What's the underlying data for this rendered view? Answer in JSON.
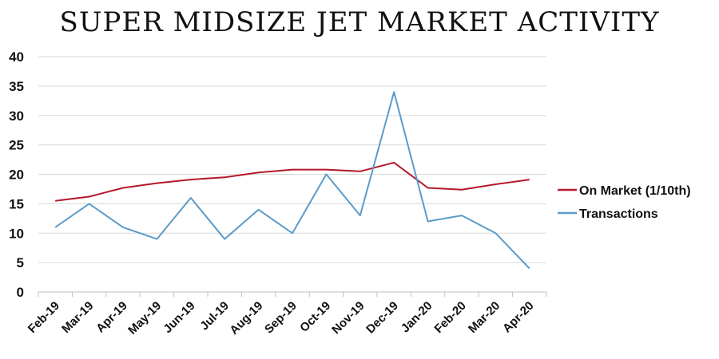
{
  "chart_data": {
    "type": "line",
    "title": "SUPER MIDSIZE JET MARKET ACTIVITY",
    "categories": [
      "Feb-19",
      "Mar-19",
      "Apr-19",
      "May-19",
      "Jun-19",
      "Jul-19",
      "Aug-19",
      "Sep-19",
      "Oct-19",
      "Nov-19",
      "Dec-19",
      "Jan-20",
      "Feb-20",
      "Mar-20",
      "Apr-20"
    ],
    "series": [
      {
        "name": "On Market (1/10th)",
        "color": "#b5182b",
        "values": [
          15.5,
          16.2,
          17.7,
          18.5,
          19.1,
          19.5,
          20.3,
          20.8,
          20.8,
          20.5,
          22.0,
          17.7,
          17.4,
          18.3,
          19.1
        ]
      },
      {
        "name": "Transactions",
        "color": "#5b9bc9",
        "values": [
          11,
          15,
          11,
          9,
          16,
          9,
          14,
          10,
          20,
          13,
          34,
          12,
          13,
          10,
          4
        ]
      }
    ],
    "ylim": [
      0,
      40
    ],
    "yticks": [
      0,
      5,
      10,
      15,
      20,
      25,
      30,
      35,
      40
    ],
    "grid": true,
    "legend": "right"
  }
}
